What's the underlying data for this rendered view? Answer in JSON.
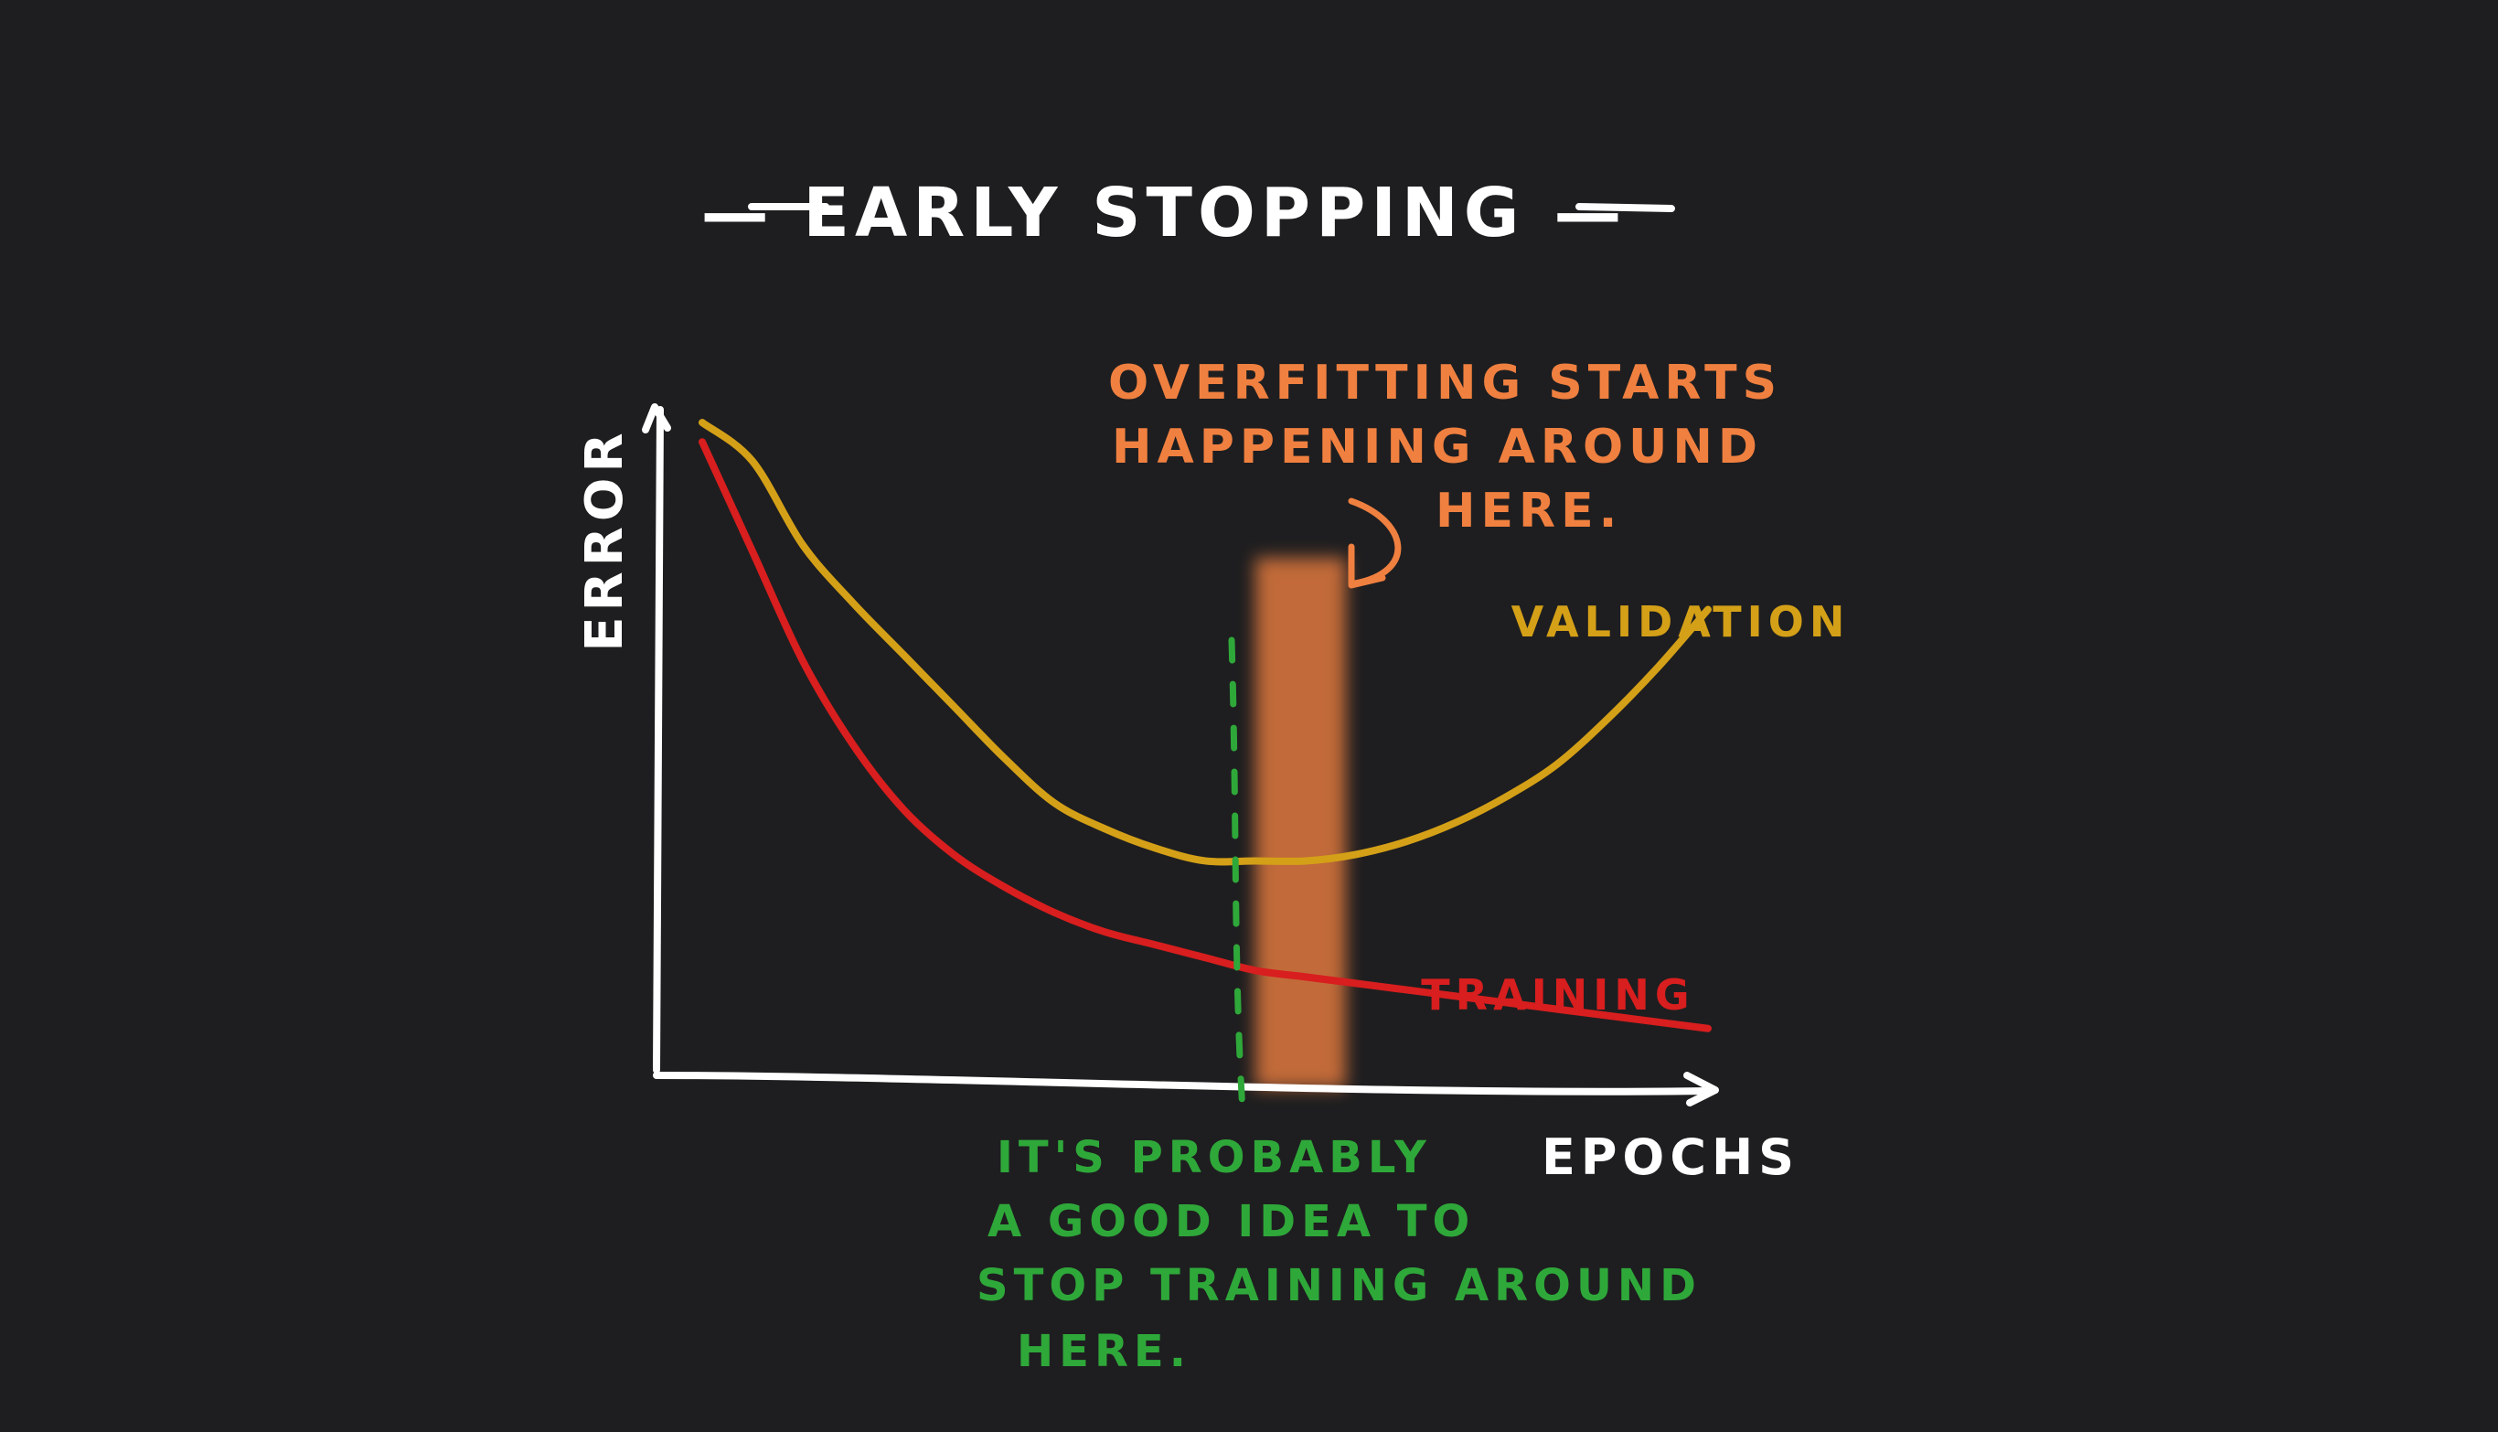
{
  "chart_data": {
    "type": "line",
    "title": "— EARLY STOPPING —",
    "xlabel": "EPOCHS",
    "ylabel": "ERROR",
    "xlim": [
      0,
      100
    ],
    "ylim": [
      0,
      100
    ],
    "grid": false,
    "legend": "inline labels at curve ends",
    "x": [
      0,
      5,
      10,
      15,
      20,
      25,
      30,
      35,
      40,
      45,
      50,
      55,
      60,
      65,
      70,
      75,
      80,
      85,
      90,
      95,
      100
    ],
    "series": [
      {
        "name": "VALIDATION",
        "color": "#d4a017",
        "values": [
          99,
          93,
          80,
          71,
          63,
          55,
          47,
          40,
          36,
          33,
          31,
          31,
          31,
          32,
          34,
          37,
          41,
          46,
          53,
          61,
          70
        ]
      },
      {
        "name": "TRAINING",
        "color": "#d81e1e",
        "values": [
          96,
          79,
          62,
          49,
          39,
          32,
          27,
          23,
          20,
          18,
          16,
          14,
          13,
          12,
          11,
          10,
          9,
          8,
          7,
          6,
          5
        ]
      }
    ],
    "annotations": {
      "overfitting": {
        "lines": [
          "OVERFITTING STARTS",
          "HAPPENING AROUND",
          "HERE."
        ],
        "color": "#f08040",
        "x_start": 55,
        "x_end": 64
      },
      "stop_training": {
        "lines": [
          "IT'S PROBABLY",
          "A GOOD IDEA TO",
          "STOP TRAINING AROUND",
          "HERE."
        ],
        "color": "#2fa83a",
        "x": 53
      }
    },
    "axis_color": "#ffffff"
  }
}
